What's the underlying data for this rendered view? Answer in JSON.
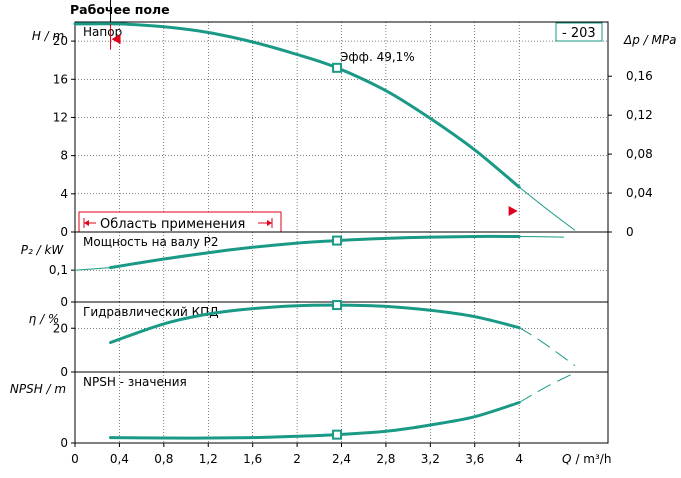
{
  "chart_data": {
    "type": "line",
    "title": "Рабочее поле",
    "curve_id": "- 203",
    "colors": {
      "curve": "#1a9a86",
      "marker": "#1a9a86",
      "range": "#e0001a",
      "grid": "#000000"
    },
    "x": {
      "label": "Q / m³/h",
      "label_q": "Q",
      "label_unit": "/ m³/h",
      "range": [
        0,
        4.8
      ],
      "ticks": [
        0,
        0.4,
        0.8,
        1.2,
        1.6,
        2,
        2.4,
        2.8,
        3.2,
        3.6,
        4
      ],
      "tick_labels": [
        "0",
        "0,4",
        "0,8",
        "1,2",
        "1,6",
        "2",
        "2,4",
        "2,8",
        "3,2",
        "3,6",
        "4"
      ]
    },
    "operating_point_q": 2.36,
    "application_range": {
      "label": "Область применения",
      "q_min": 0.32,
      "q_max": 3.95
    },
    "panels": [
      {
        "id": "head",
        "title": "Напор",
        "ylabel": "H / m",
        "y_range": [
          0,
          22
        ],
        "y_ticks": [
          0,
          4,
          8,
          12,
          16,
          20
        ],
        "y_tick_labels": [
          "0",
          "4",
          "8",
          "12",
          "16",
          "20"
        ],
        "right_axis": {
          "label": "Δp / MPa",
          "range": [
            0,
            0.2157
          ],
          "ticks": [
            0,
            0.04,
            0.08,
            0.12,
            0.16
          ],
          "tick_labels": [
            "0",
            "0,04",
            "0,08",
            "0,12",
            "0,16"
          ]
        },
        "annotation": "Эфф. 49,1%",
        "series": [
          {
            "style": "thick",
            "x": [
              0,
              0.4,
              0.8,
              1.2,
              1.6,
              2.0,
              2.36,
              2.8,
              3.2,
              3.6,
              4.0
            ],
            "y": [
              21.8,
              21.8,
              21.5,
              20.9,
              19.9,
              18.6,
              17.2,
              14.8,
              11.9,
              8.6,
              4.7
            ]
          },
          {
            "style": "thin",
            "x": [
              4.0,
              4.25,
              4.5
            ],
            "y": [
              4.7,
              2.4,
              0.2
            ]
          }
        ]
      },
      {
        "id": "power",
        "title": "Мощность на валу P2",
        "ylabel": "P₂ / kW",
        "y_range": [
          0,
          0.22
        ],
        "y_ticks": [
          0,
          0.1
        ],
        "y_tick_labels": [
          "0",
          "0,1"
        ],
        "series": [
          {
            "style": "thin",
            "x": [
              0,
              0.32
            ],
            "y": [
              0.1,
              0.108
            ]
          },
          {
            "style": "thick",
            "x": [
              0.32,
              0.8,
              1.2,
              1.6,
              2.0,
              2.36,
              2.8,
              3.2,
              3.6,
              4.0
            ],
            "y": [
              0.108,
              0.135,
              0.155,
              0.172,
              0.185,
              0.193,
              0.2,
              0.204,
              0.206,
              0.206
            ]
          },
          {
            "style": "thin",
            "x": [
              4.0,
              4.2,
              4.4
            ],
            "y": [
              0.206,
              0.205,
              0.204
            ]
          }
        ]
      },
      {
        "id": "efficiency",
        "title": "Гидравлический КПД",
        "ylabel": "η / %",
        "y_range": [
          0,
          32
        ],
        "y_ticks": [
          0,
          20
        ],
        "y_tick_labels": [
          "0",
          "20"
        ],
        "series": [
          {
            "style": "thick",
            "x": [
              0.32,
              0.8,
              1.2,
              1.6,
              2.0,
              2.36,
              2.8,
              3.2,
              3.6,
              4.0
            ],
            "y": [
              13.5,
              22,
              26.5,
              29,
              30.3,
              30.6,
              30,
              28.2,
              25.3,
              20.3
            ]
          },
          {
            "style": "dashed",
            "x": [
              4.0,
              4.2,
              4.5
            ],
            "y": [
              20.3,
              14,
              3
            ]
          }
        ]
      },
      {
        "id": "npsh",
        "title": "NPSH - значения",
        "ylabel": "NPSH / m",
        "y_range": [
          0,
          1.7
        ],
        "y_ticks": [
          0
        ],
        "y_tick_labels": [
          "0"
        ],
        "series": [
          {
            "style": "thick",
            "x": [
              0.32,
              0.8,
              1.2,
              1.6,
              2.0,
              2.36,
              2.8,
              3.2,
              3.6,
              4.0
            ],
            "y": [
              0.13,
              0.12,
              0.12,
              0.13,
              0.16,
              0.2,
              0.28,
              0.43,
              0.63,
              0.97
            ]
          },
          {
            "style": "dashed",
            "x": [
              4.0,
              4.25,
              4.5
            ],
            "y": [
              0.97,
              1.35,
              1.68
            ]
          }
        ]
      }
    ]
  }
}
